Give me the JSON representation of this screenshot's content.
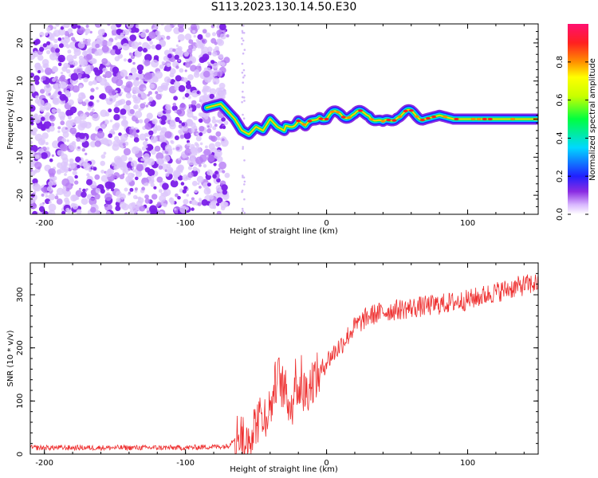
{
  "title": "S113.2023.130.14.50.E30",
  "colors": {
    "spectrogram_low": "#8a2be2",
    "snr_line": "#ee3030",
    "frame": "#000000"
  },
  "chart_data": [
    {
      "type": "heatmap",
      "xlabel": "Height of straight line (km)",
      "ylabel": "Frequency (Hz)",
      "xlim": [
        -210,
        150
      ],
      "ylim": [
        -25,
        25
      ],
      "xticks": [
        -200,
        -100,
        0,
        100
      ],
      "yticks": [
        -20,
        -10,
        0,
        10,
        20
      ],
      "colorbar": {
        "label": "Normalized spectral amplitude",
        "range": [
          0,
          1
        ],
        "ticks": [
          0.0,
          0.2,
          0.4,
          0.6,
          0.8
        ],
        "colormap": "rainbow (violet to red to magenta)"
      },
      "ridge": {
        "x": [
          -85,
          -75,
          -65,
          -60,
          -55,
          -50,
          -45,
          -40,
          -35,
          -30,
          -25,
          -20,
          -15,
          -10,
          -5,
          0,
          10,
          20,
          30,
          40,
          50,
          60,
          70,
          80,
          90,
          100,
          110,
          120,
          130,
          140,
          150
        ],
        "y": [
          3,
          4,
          0,
          -3,
          -4,
          -2,
          -3,
          0,
          -2,
          -3,
          -1,
          1,
          -2,
          0,
          2,
          0,
          1,
          0,
          2,
          -1,
          2,
          1,
          0,
          1,
          0,
          0,
          0,
          0,
          0,
          0,
          0
        ]
      },
      "noise_region": {
        "x_from": -210,
        "x_to": -75,
        "note": "scattered low-amplitude violet noise"
      }
    },
    {
      "type": "line",
      "xlabel": "Height of straight line (km)",
      "ylabel": "SNR (10 * v/v)",
      "xlim": [
        -210,
        150
      ],
      "ylim": [
        0,
        360
      ],
      "xticks": [
        -200,
        -100,
        0,
        100
      ],
      "yticks": [
        0,
        100,
        200,
        300
      ],
      "series": [
        {
          "color": "#ee3030",
          "x": [
            -210,
            -150,
            -100,
            -70,
            -62,
            -58,
            -50,
            -40,
            -35,
            -30,
            -25,
            -20,
            -15,
            -10,
            -5,
            0,
            10,
            20,
            30,
            40,
            50,
            60,
            80,
            100,
            120,
            140,
            150
          ],
          "y": [
            12,
            12,
            12,
            15,
            40,
            20,
            60,
            85,
            150,
            120,
            90,
            130,
            115,
            140,
            150,
            175,
            205,
            240,
            260,
            268,
            272,
            275,
            282,
            290,
            305,
            318,
            322
          ],
          "noise_amplitude": 20
        }
      ]
    }
  ]
}
